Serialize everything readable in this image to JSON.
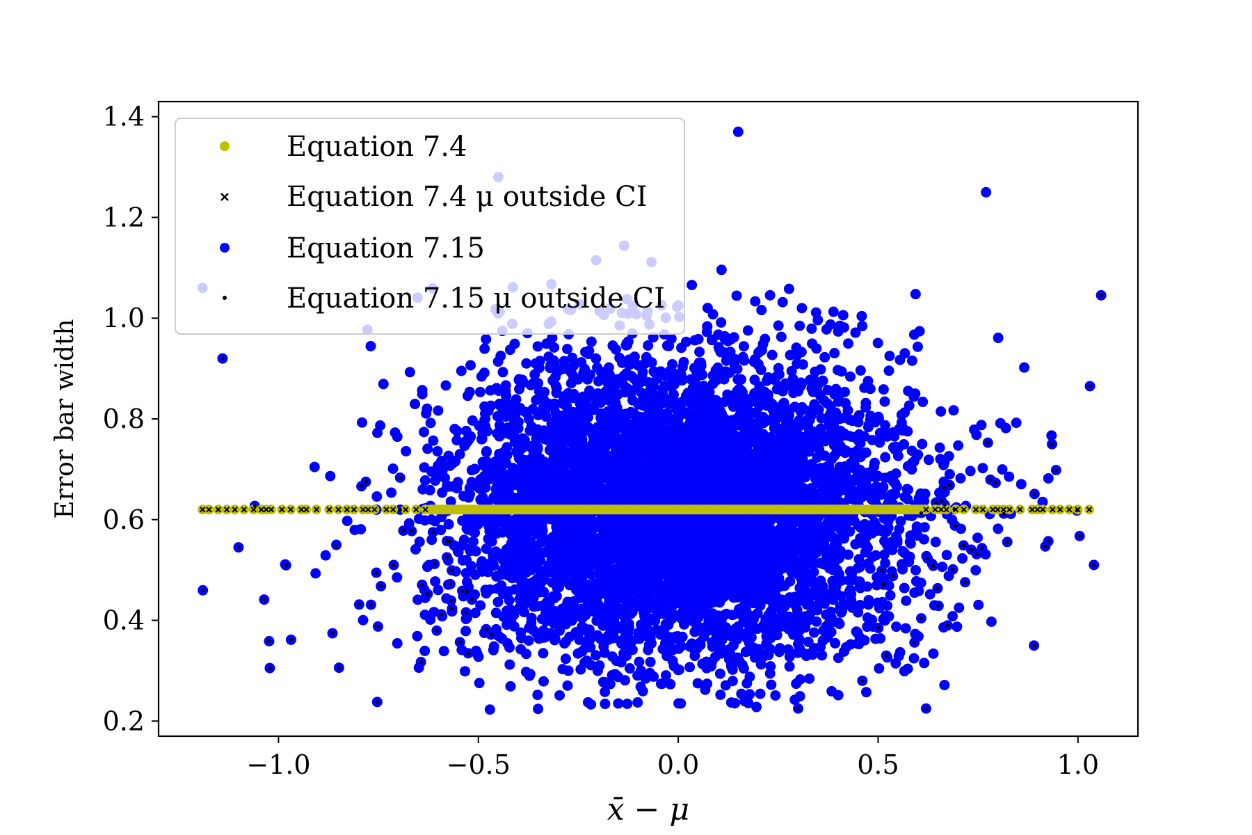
{
  "chart_data": {
    "type": "scatter",
    "xlabel": "x̄ − μ",
    "ylabel": "Error bar width",
    "xlim": [
      -1.3,
      1.15
    ],
    "ylim": [
      0.17,
      1.43
    ],
    "x_ticks": [
      -1.0,
      -0.5,
      0.0,
      0.5,
      1.0
    ],
    "x_tick_labels": [
      "−1.0",
      "−0.5",
      "0.0",
      "0.5",
      "1.0"
    ],
    "y_ticks": [
      0.2,
      0.4,
      0.6,
      0.8,
      1.0,
      1.2,
      1.4
    ],
    "y_tick_labels": [
      "0.2",
      "0.4",
      "0.6",
      "0.8",
      "1.0",
      "1.2",
      "1.4"
    ],
    "grid": false,
    "legend_position": "top-left",
    "colors": {
      "eq74": "#bfbf00",
      "eq715": "#0000ff",
      "outside": "#000000"
    },
    "series": [
      {
        "name": "Equation 7.4",
        "marker": "circle",
        "color": "#bfbf00",
        "y": 0.62,
        "x_range": [
          -1.19,
          1.04
        ]
      },
      {
        "name": "Equation 7.4 μ outside CI",
        "marker": "x",
        "color": "#000000",
        "y": 0.62,
        "x_ranges": [
          [
            -1.19,
            -0.62
          ],
          [
            0.62,
            1.04
          ]
        ]
      },
      {
        "name": "Equation 7.15",
        "marker": "circle",
        "color": "#0000ff",
        "center": [
          0.0,
          0.62
        ],
        "highlighted_points": [
          [
            0.15,
            1.37
          ],
          [
            -0.45,
            1.28
          ],
          [
            -1.19,
            1.06
          ],
          [
            -1.14,
            0.92
          ],
          [
            -1.1,
            0.545
          ],
          [
            0.3,
            0.225
          ],
          [
            0.62,
            0.225
          ],
          [
            1.04,
            0.51
          ],
          [
            1.03,
            0.865
          ],
          [
            0.77,
            1.25
          ],
          [
            -0.15,
            0.235
          ],
          [
            0.89,
            0.35
          ]
        ]
      },
      {
        "name": "Equation 7.15 μ outside CI",
        "marker": "dot",
        "color": "#000000"
      }
    ]
  }
}
